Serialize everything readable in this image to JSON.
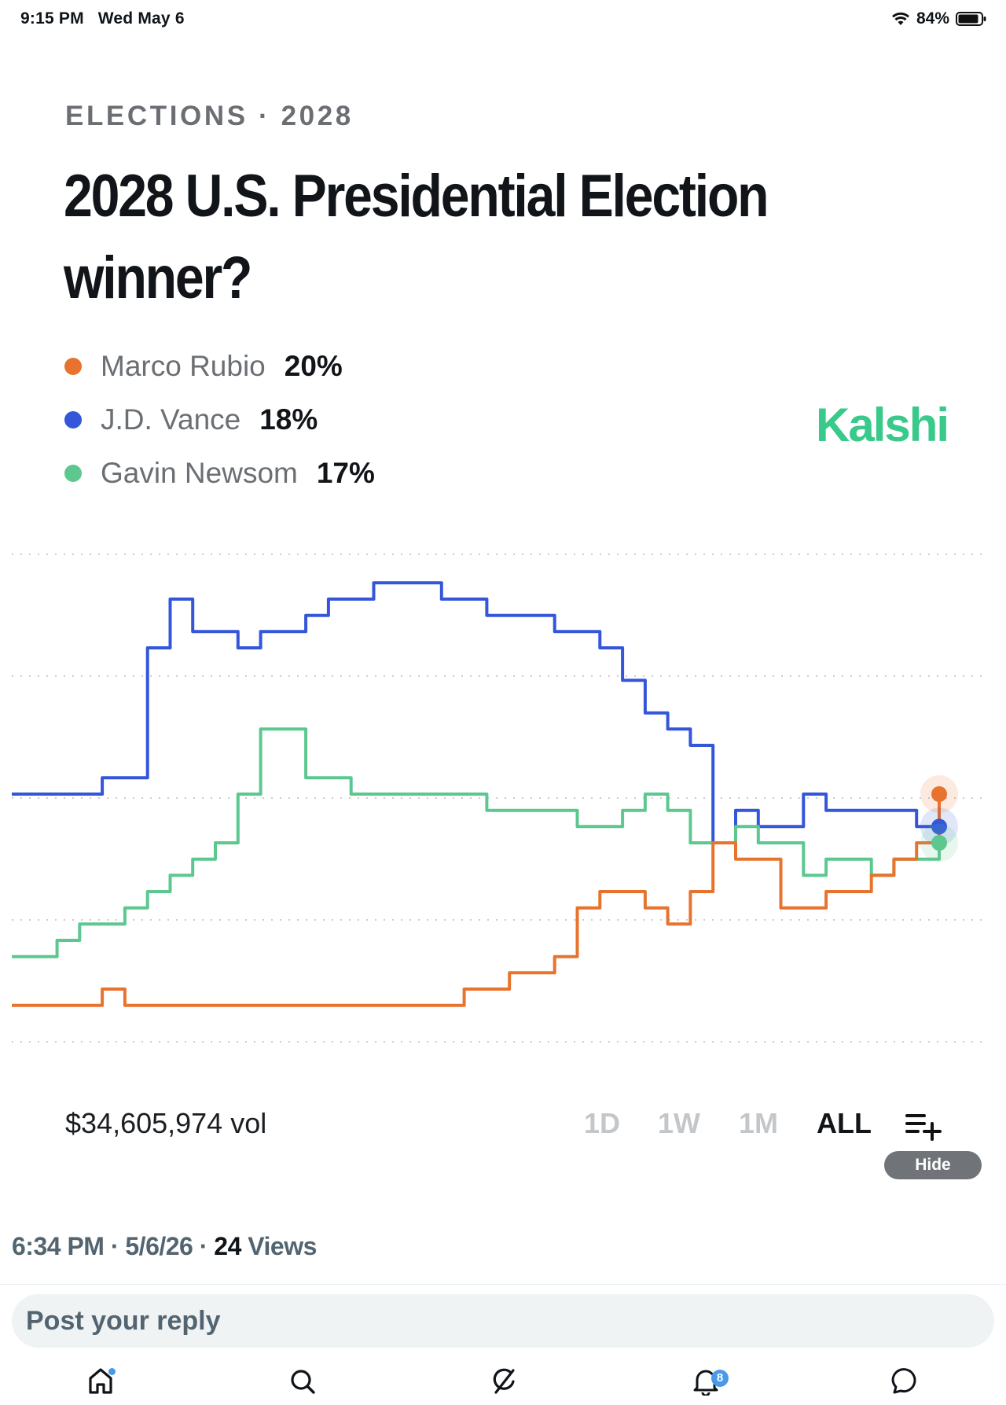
{
  "status_bar": {
    "time": "9:15 PM",
    "date": "Wed May 6",
    "battery": "84%"
  },
  "market": {
    "category": "ELECTIONS · 2028",
    "title": "2028 U.S. Presidential Election winner?",
    "brand": "Kalshi",
    "legend": [
      {
        "name": "Marco Rubio",
        "pct": "20%",
        "color": "#e8732e"
      },
      {
        "name": "J.D. Vance",
        "pct": "18%",
        "color": "#3456d9"
      },
      {
        "name": "Gavin Newsom",
        "pct": "17%",
        "color": "#5cc890"
      }
    ],
    "volume": "$34,605,974 vol",
    "ranges": [
      "1D",
      "1W",
      "1M",
      "ALL"
    ],
    "active_range": "ALL",
    "hide_label": "Hide"
  },
  "chart_data": {
    "type": "line",
    "title": "",
    "xlabel": "",
    "ylabel": "",
    "x_points": 42,
    "grid": "dotted horizontal",
    "ylim": [
      5,
      35
    ],
    "series": [
      {
        "name": "J.D. Vance",
        "color": "#3456d9",
        "values": [
          20,
          20,
          20,
          20,
          21,
          21,
          29,
          32,
          30,
          30,
          29,
          30,
          30,
          31,
          32,
          32,
          33,
          33,
          33,
          32,
          32,
          31,
          31,
          31,
          30,
          30,
          29,
          27,
          25,
          24,
          23,
          17,
          19,
          18,
          18,
          20,
          19,
          19,
          19,
          19,
          18,
          18
        ]
      },
      {
        "name": "Gavin Newsom",
        "color": "#5cc890",
        "values": [
          10,
          10,
          11,
          12,
          12,
          13,
          14,
          15,
          16,
          17,
          20,
          24,
          24,
          21,
          21,
          20,
          20,
          20,
          20,
          20,
          20,
          19,
          19,
          19,
          19,
          18,
          18,
          19,
          20,
          19,
          17,
          17,
          18,
          17,
          17,
          15,
          16,
          16,
          15,
          16,
          16,
          17
        ]
      },
      {
        "name": "Marco Rubio",
        "color": "#e8732e",
        "values": [
          7,
          7,
          7,
          7,
          8,
          7,
          7,
          7,
          7,
          7,
          7,
          7,
          7,
          7,
          7,
          7,
          7,
          7,
          7,
          7,
          8,
          8,
          9,
          9,
          10,
          13,
          14,
          14,
          13,
          12,
          14,
          17,
          16,
          16,
          13,
          13,
          14,
          14,
          15,
          16,
          17,
          20
        ]
      }
    ]
  },
  "post": {
    "time": "6:34 PM",
    "date": "5/6/26",
    "views_count": "24",
    "views_label": "Views"
  },
  "reply": {
    "placeholder": "Post your reply"
  },
  "tabbar": {
    "notifications_badge": "8"
  }
}
